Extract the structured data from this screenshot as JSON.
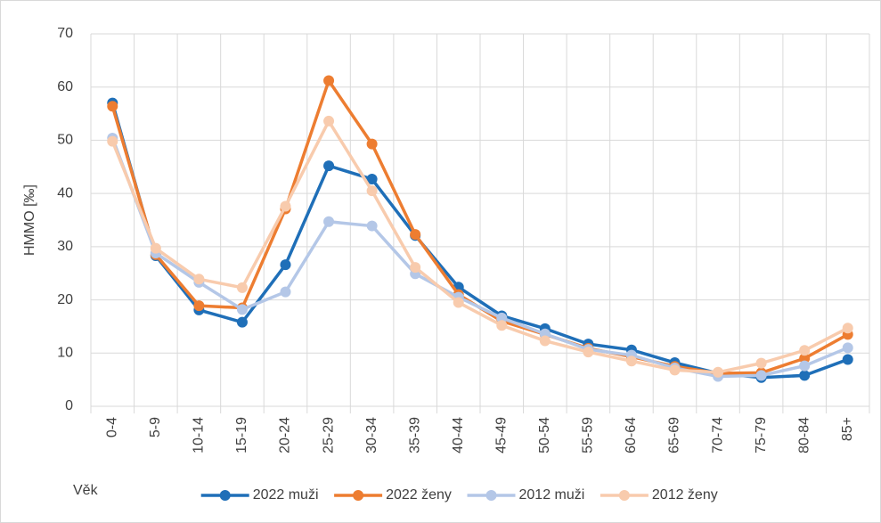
{
  "chart_data": {
    "type": "line",
    "ylabel": "HMMO [‰]",
    "xlabel": "Věk",
    "categories": [
      "0-4",
      "5-9",
      "10-14",
      "15-19",
      "20-24",
      "25-29",
      "30-34",
      "35-39",
      "40-44",
      "45-49",
      "50-54",
      "55-59",
      "60-64",
      "65-69",
      "70-74",
      "75-79",
      "80-84",
      "85+"
    ],
    "series": [
      {
        "name": "2022 muži",
        "color": "#1f6fb8",
        "values": [
          57.0,
          28.3,
          18.1,
          15.8,
          26.6,
          45.2,
          42.7,
          32.1,
          22.4,
          17.0,
          14.6,
          11.7,
          10.6,
          8.2,
          6.2,
          5.4,
          5.8,
          8.8
        ]
      },
      {
        "name": "2022 ženy",
        "color": "#ed7d31",
        "values": [
          56.4,
          28.5,
          18.9,
          18.5,
          37.1,
          61.2,
          49.3,
          32.3,
          21.0,
          16.0,
          13.5,
          10.9,
          9.3,
          7.5,
          6.2,
          6.3,
          9.0,
          13.5
        ]
      },
      {
        "name": "2012 muži",
        "color": "#b4c7e7",
        "values": [
          50.4,
          28.8,
          23.3,
          18.2,
          21.5,
          34.7,
          33.9,
          24.9,
          20.5,
          16.6,
          13.6,
          10.7,
          9.6,
          7.2,
          5.6,
          5.8,
          7.6,
          11.0
        ]
      },
      {
        "name": "2012 ženy",
        "color": "#f8cbad",
        "values": [
          49.8,
          29.7,
          23.9,
          22.3,
          37.6,
          53.6,
          40.5,
          26.1,
          19.5,
          15.2,
          12.3,
          10.2,
          8.5,
          6.8,
          6.4,
          8.1,
          10.5,
          14.7
        ]
      }
    ],
    "ylim": [
      0,
      70
    ],
    "yticks": [
      0,
      10,
      20,
      30,
      40,
      50,
      60,
      70
    ],
    "grid": true,
    "legend": "bottom"
  }
}
